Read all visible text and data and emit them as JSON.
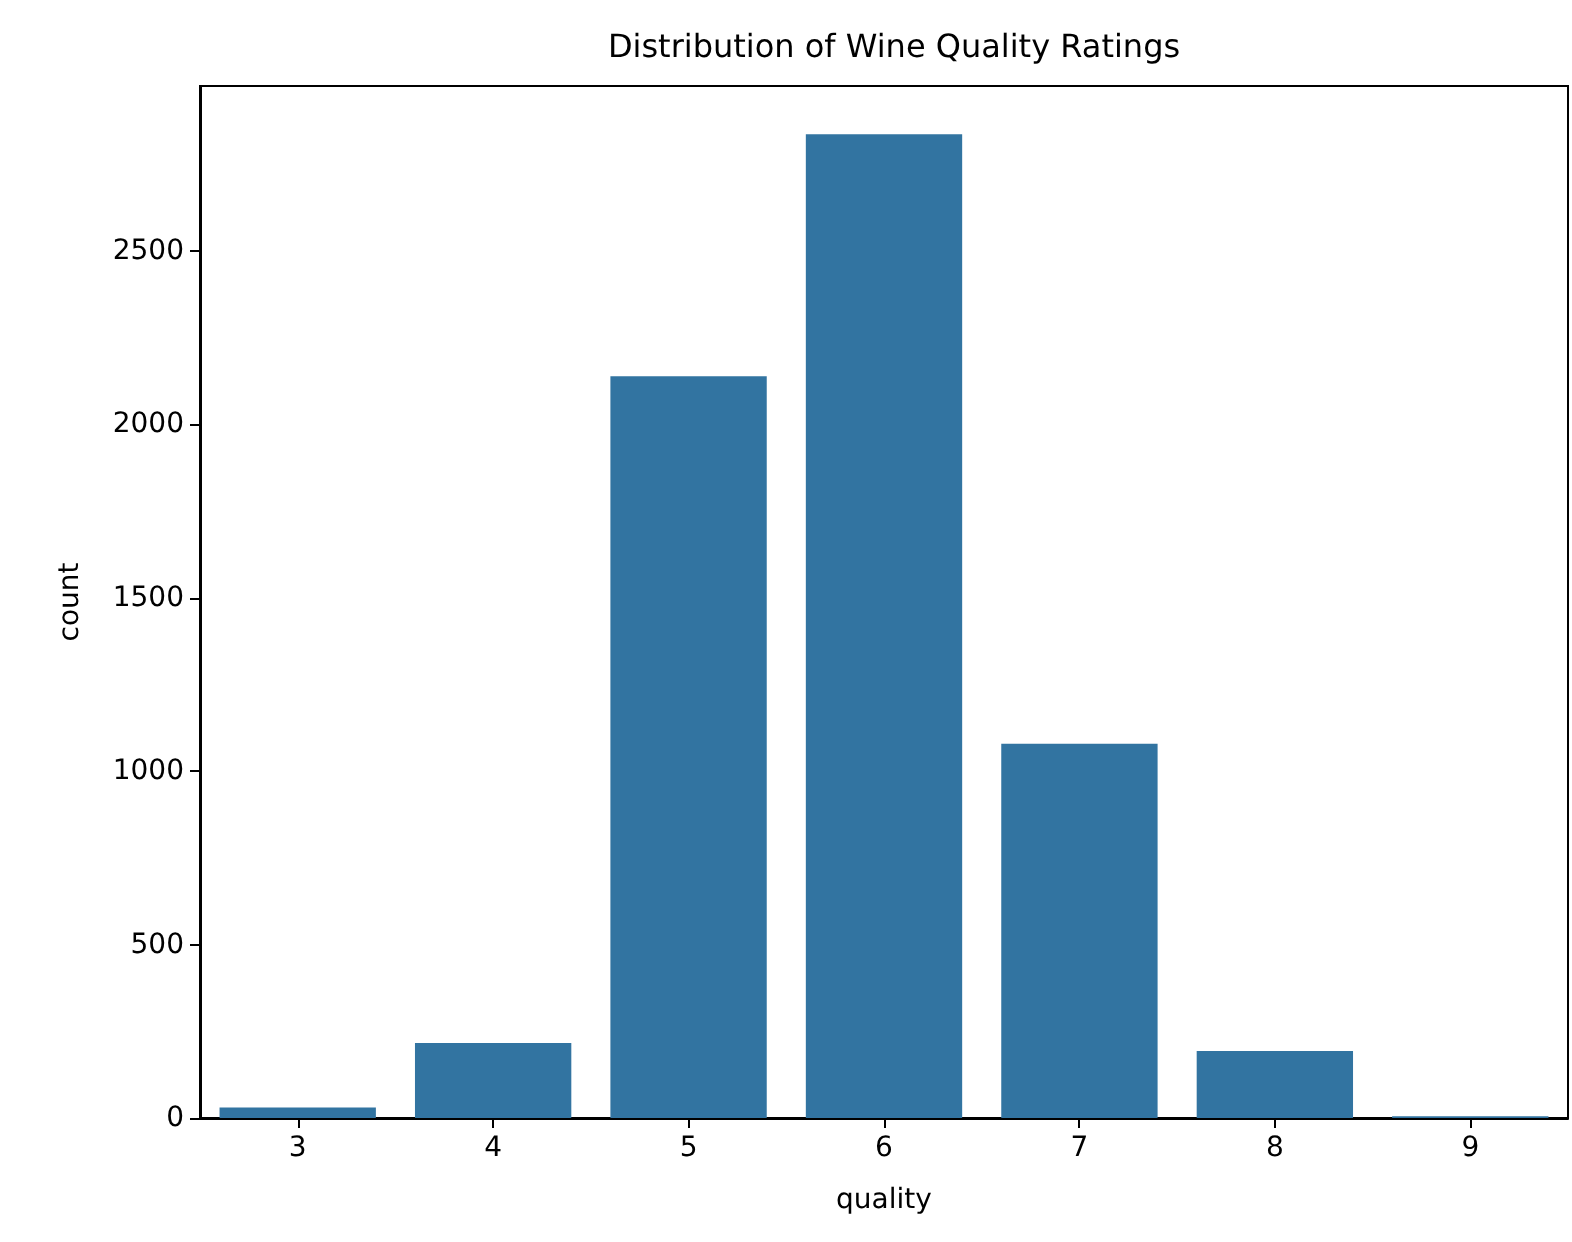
{
  "chart_data": {
    "type": "bar",
    "title": "Distribution of Wine Quality Ratings",
    "xlabel": "quality",
    "ylabel": "count",
    "categories": [
      "3",
      "4",
      "5",
      "6",
      "7",
      "8",
      "9"
    ],
    "values": [
      30,
      216,
      2138,
      2836,
      1079,
      193,
      5
    ],
    "color": "#3274a1",
    "ylim": [
      0,
      2975
    ],
    "yticks": [
      0,
      500,
      1000,
      1500,
      2000,
      2500
    ],
    "grid": false
  }
}
